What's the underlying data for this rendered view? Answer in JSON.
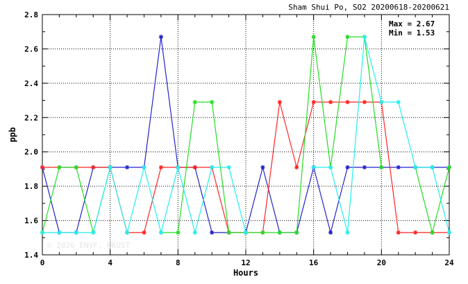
{
  "chart_data": {
    "type": "line",
    "title": "Sham Shui Po, SO2 20200618-20200621",
    "xlabel": "Hours",
    "ylabel": "ppb",
    "xlim": [
      0,
      24
    ],
    "ylim": [
      1.4,
      2.8
    ],
    "x_ticks": [
      "0",
      "4",
      "8",
      "12",
      "16",
      "20",
      "24"
    ],
    "y_ticks": [
      "1.4",
      "1.6",
      "1.8",
      "2.0",
      "2.2",
      "2.4",
      "2.6",
      "2.8"
    ],
    "grid": true,
    "stats": {
      "max_label": "Max = 2.67",
      "min_label": "Min = 1.53"
    },
    "watermark": "© 2026 ENVF, HKUST",
    "x": [
      0,
      1,
      2,
      3,
      4,
      5,
      6,
      7,
      8,
      9,
      10,
      11,
      12,
      13,
      14,
      15,
      16,
      17,
      18,
      19,
      20,
      21,
      22,
      23,
      24
    ],
    "series": [
      {
        "color": "#2222cc",
        "values": [
          1.91,
          1.53,
          1.53,
          1.91,
          1.91,
          1.91,
          1.91,
          2.67,
          1.91,
          1.91,
          1.53,
          1.53,
          1.53,
          1.91,
          1.53,
          1.53,
          1.91,
          1.53,
          1.91,
          1.91,
          1.91,
          1.91,
          1.91,
          1.91,
          1.91
        ]
      },
      {
        "color": "#ff2222",
        "values": [
          1.91,
          1.91,
          1.91,
          1.91,
          1.91,
          1.53,
          1.53,
          1.91,
          1.91,
          1.91,
          1.91,
          1.53,
          1.53,
          1.53,
          2.29,
          1.91,
          2.29,
          2.29,
          2.29,
          2.29,
          2.29,
          1.53,
          1.53,
          1.53,
          1.53
        ]
      },
      {
        "color": "#22dd22",
        "values": [
          1.53,
          1.91,
          1.91,
          1.53,
          1.91,
          null,
          null,
          1.53,
          1.53,
          2.29,
          2.29,
          1.53,
          1.53,
          1.53,
          1.53,
          1.53,
          2.67,
          1.91,
          2.67,
          2.67,
          1.91,
          null,
          1.91,
          1.53,
          1.91
        ]
      },
      {
        "color": "#22eeee",
        "values": [
          1.53,
          1.53,
          1.53,
          1.53,
          1.91,
          1.53,
          1.91,
          1.53,
          1.91,
          1.53,
          1.91,
          1.91,
          1.53,
          null,
          null,
          null,
          1.91,
          1.91,
          1.53,
          2.67,
          2.29,
          2.29,
          1.91,
          1.91,
          1.53
        ]
      }
    ]
  }
}
